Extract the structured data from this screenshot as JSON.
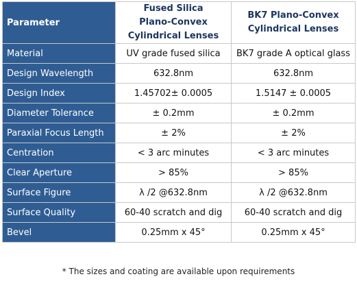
{
  "table": {
    "header": [
      [
        "Parameter"
      ],
      [
        "Fused Silica",
        "Plano-Convex",
        "Cylindrical Lenses"
      ],
      [
        "BK7 Plano-Convex",
        "Cylindrical Lenses"
      ]
    ],
    "rows": [
      [
        "Material",
        "UV grade fused silica",
        "BK7 grade A optical glass"
      ],
      [
        "Design Wavelength",
        "632.8nm",
        "632.8nm"
      ],
      [
        "Design Index",
        "1.45702± 0.0005",
        "1.5147 ± 0.0005"
      ],
      [
        "Diameter Tolerance",
        "± 0.2mm",
        "± 0.2mm"
      ],
      [
        "Paraxial Focus Length",
        "± 2%",
        "± 2%"
      ],
      [
        "Centration",
        "< 3 arc minutes",
        "< 3 arc minutes"
      ],
      [
        "Clear Aperture",
        "> 85%",
        "> 85%"
      ],
      [
        "Surface Figure",
        "λ /2 @632.8nm",
        "λ /2 @632.8nm"
      ],
      [
        "Surface Quality",
        "60-40 scratch and dig",
        "60-40 scratch and dig"
      ],
      [
        "Bevel",
        "0.25mm x 45°",
        "0.25mm x 45°"
      ]
    ]
  },
  "footnote": "* The sizes and coating are available upon requirements"
}
